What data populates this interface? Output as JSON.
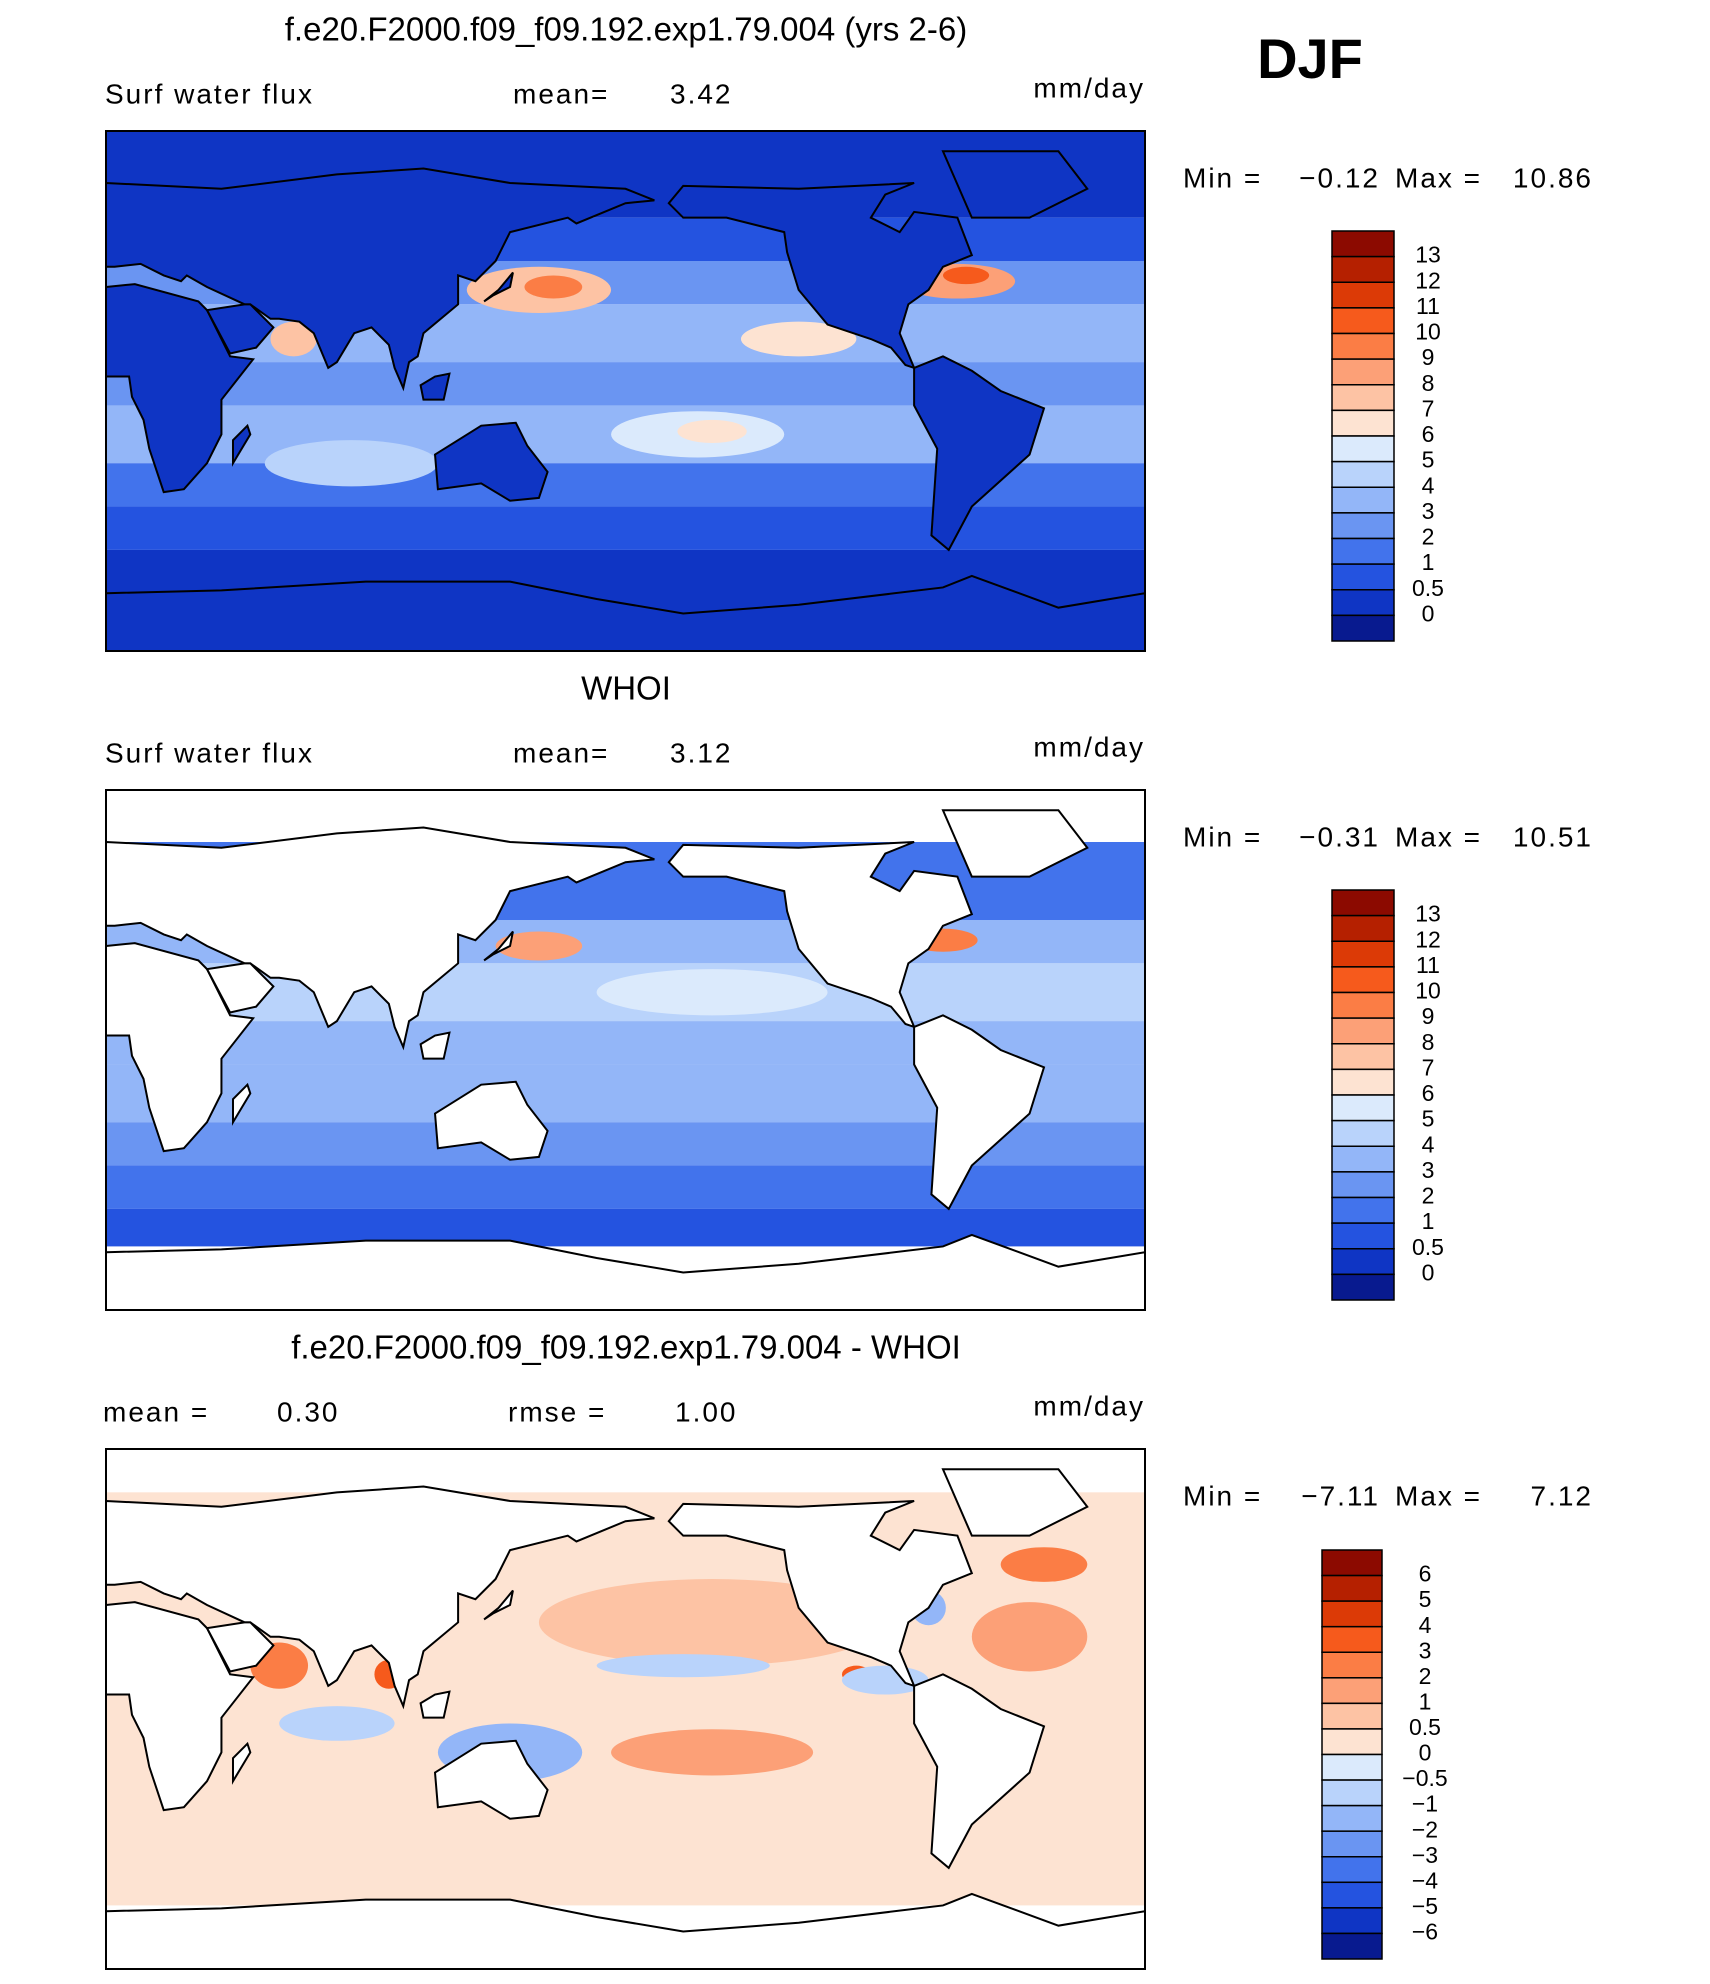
{
  "season": "DJF",
  "panels": [
    {
      "title": "f.e20.F2000.f09_f09.192.exp1.79.004 (yrs 2-6)",
      "stats": [
        {
          "label": "Surf water flux"
        },
        {
          "label": "mean=",
          "value": "3.42"
        }
      ],
      "units": "mm/day",
      "min_label": "Min =",
      "min": "−0.12",
      "max_label": "Max =",
      "max": "10.86",
      "colorbar": {
        "labels": [
          "13",
          "12",
          "11",
          "10",
          "9",
          "8",
          "7",
          "6",
          "5",
          "4",
          "3",
          "2",
          "1",
          "0.5",
          "0"
        ],
        "colors": [
          "#8c0a00",
          "#b52000",
          "#dc3a06",
          "#f65a1c",
          "#fb7d45",
          "#fca077",
          "#fdc3a4",
          "#fde3d2",
          "#dbeafc",
          "#b9d3fb",
          "#93b6f8",
          "#6a95f2",
          "#4273ec",
          "#2453e0",
          "#0f35c4",
          "#081a8f"
        ]
      }
    },
    {
      "title": "WHOI",
      "stats": [
        {
          "label": "Surf water flux"
        },
        {
          "label": "mean=",
          "value": "3.12"
        }
      ],
      "units": "mm/day",
      "min_label": "Min =",
      "min": "−0.31",
      "max_label": "Max =",
      "max": "10.51",
      "colorbar": {
        "labels": [
          "13",
          "12",
          "11",
          "10",
          "9",
          "8",
          "7",
          "6",
          "5",
          "4",
          "3",
          "2",
          "1",
          "0.5",
          "0"
        ],
        "colors": [
          "#8c0a00",
          "#b52000",
          "#dc3a06",
          "#f65a1c",
          "#fb7d45",
          "#fca077",
          "#fdc3a4",
          "#fde3d2",
          "#dbeafc",
          "#b9d3fb",
          "#93b6f8",
          "#6a95f2",
          "#4273ec",
          "#2453e0",
          "#0f35c4",
          "#081a8f"
        ]
      }
    },
    {
      "title": "f.e20.F2000.f09_f09.192.exp1.79.004 - WHOI",
      "stats": [
        {
          "label": "mean =",
          "value": "0.30"
        },
        {
          "label": "rmse =",
          "value": "1.00"
        }
      ],
      "units": "mm/day",
      "min_label": "Min =",
      "min": "−7.11",
      "max_label": "Max =",
      "max": "7.12",
      "colorbar": {
        "labels": [
          "6",
          "5",
          "4",
          "3",
          "2",
          "1",
          "0.5",
          "0",
          "−0.5",
          "−1",
          "−2",
          "−3",
          "−4",
          "−5",
          "−6"
        ],
        "colors": [
          "#8c0a00",
          "#b52000",
          "#dc3a06",
          "#f65a1c",
          "#fb7d45",
          "#fca077",
          "#fdc3a4",
          "#fde3d2",
          "#dbeafc",
          "#b9d3fb",
          "#93b6f8",
          "#6a95f2",
          "#4273ec",
          "#2453e0",
          "#0f35c4",
          "#081a8f"
        ]
      }
    }
  ]
}
